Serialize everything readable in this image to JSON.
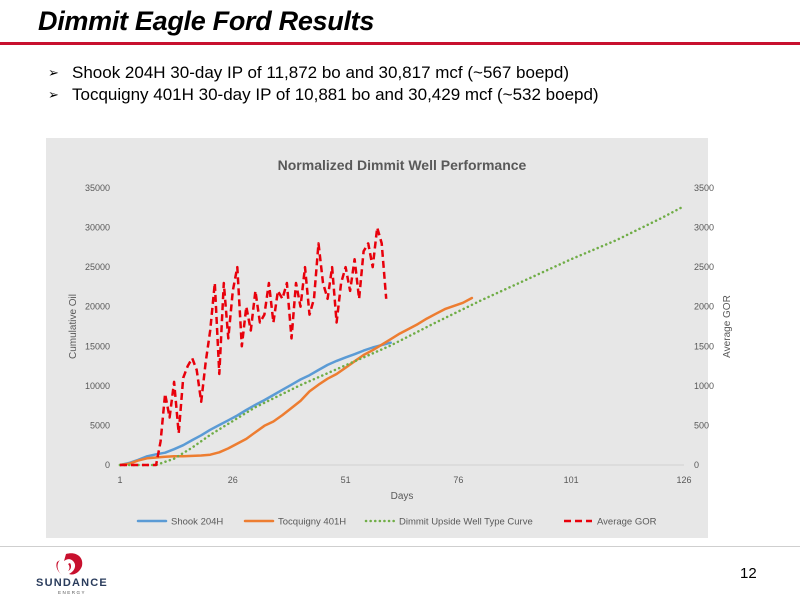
{
  "slide": {
    "title": "Dimmit Eagle Ford Results",
    "bullets": [
      "Shook 204H 30-day IP of 11,872 bo and 30,817 mcf (~567 boepd)",
      "Tocquigny 401H 30-day IP of 10,881 bo and 30,429 mcf (~532 boepd)"
    ],
    "page_number": "12",
    "logo": {
      "text": "SUNDANCE",
      "subtext": "ENERGY"
    }
  },
  "colors": {
    "title_rule": "#c8102e",
    "shook": "#5b9bd5",
    "tocquigny": "#ed7d31",
    "type_curve": "#70ad47",
    "gor": "#e8000b",
    "chart_background": "#e7e7e7"
  },
  "chart_data": {
    "type": "line",
    "title": "Normalized Dimmit Well Performance",
    "xlabel": "Days",
    "ylabel": "Cumulative Oil",
    "y2label": "Average GOR",
    "xlim": [
      1,
      126
    ],
    "ylim": [
      0,
      35000
    ],
    "y2lim": [
      0,
      3500
    ],
    "x_ticks": [
      "1",
      "26",
      "51",
      "76",
      "101",
      "126"
    ],
    "y_ticks": [
      "0",
      "5000",
      "10000",
      "15000",
      "20000",
      "25000",
      "30000",
      "35000"
    ],
    "y2_ticks": [
      "0",
      "500",
      "1000",
      "1500",
      "2000",
      "2500",
      "3000",
      "3500"
    ],
    "grid": false,
    "legend": "bottom",
    "series": [
      {
        "name": "Shook 204H",
        "axis": "left",
        "style": "solid",
        "x": [
          1,
          3,
          5,
          7,
          9,
          11,
          13,
          15,
          17,
          19,
          21,
          23,
          25,
          27,
          29,
          31,
          33,
          35,
          37,
          39,
          41,
          43,
          45,
          47,
          49,
          51,
          53,
          55,
          57,
          59,
          61
        ],
        "y": [
          0,
          250,
          650,
          1100,
          1350,
          1550,
          2000,
          2500,
          3150,
          3750,
          4450,
          5050,
          5650,
          6250,
          6950,
          7600,
          8200,
          8850,
          9500,
          10150,
          10800,
          11350,
          12000,
          12650,
          13150,
          13600,
          14000,
          14450,
          14850,
          15150,
          15450
        ]
      },
      {
        "name": "Tocquigny 401H",
        "axis": "left",
        "style": "solid",
        "x": [
          1,
          3,
          5,
          7,
          9,
          11,
          13,
          15,
          17,
          19,
          21,
          23,
          25,
          27,
          29,
          31,
          33,
          35,
          37,
          39,
          41,
          43,
          45,
          47,
          49,
          51,
          53,
          55,
          57,
          59,
          61,
          63,
          65,
          67,
          69,
          71,
          73,
          75,
          77,
          79
        ],
        "y": [
          0,
          150,
          550,
          850,
          950,
          1050,
          1100,
          1100,
          1150,
          1200,
          1300,
          1600,
          2100,
          2700,
          3300,
          4150,
          4950,
          5500,
          6300,
          7200,
          8100,
          9300,
          10150,
          10900,
          11500,
          12300,
          13100,
          13900,
          14500,
          15200,
          15900,
          16600,
          17200,
          17800,
          18500,
          19100,
          19700,
          20100,
          20500,
          21100
        ]
      },
      {
        "name": "Dimmit Upside Well Type Curve",
        "axis": "left",
        "style": "dotted",
        "x": [
          1,
          5,
          9,
          13,
          17,
          21,
          31,
          41,
          51,
          61,
          71,
          81,
          91,
          101,
          111,
          121,
          126
        ],
        "y": [
          0,
          0,
          0,
          800,
          2200,
          3800,
          7300,
          10100,
          12600,
          15100,
          18000,
          20800,
          23400,
          26000,
          28400,
          31200,
          32700
        ]
      },
      {
        "name": "Average GOR",
        "axis": "right",
        "style": "dashed",
        "x": [
          1,
          6,
          9,
          10,
          11,
          12,
          13,
          14,
          15,
          16,
          17,
          18,
          19,
          20,
          21,
          22,
          23,
          24,
          25,
          26,
          27,
          28,
          29,
          30,
          31,
          32,
          33,
          34,
          35,
          36,
          37,
          38,
          39,
          40,
          41,
          42,
          43,
          44,
          45,
          46,
          47,
          48,
          49,
          50,
          51,
          52,
          53,
          54,
          55,
          56,
          57,
          58,
          59,
          60
        ],
        "y": [
          0,
          0,
          0,
          300,
          900,
          600,
          1050,
          400,
          1100,
          1250,
          1350,
          1200,
          800,
          1300,
          1700,
          2300,
          1150,
          2300,
          1600,
          2200,
          2500,
          1500,
          2000,
          1700,
          2200,
          1800,
          1900,
          2300,
          1800,
          2200,
          2100,
          2300,
          1600,
          2300,
          2000,
          2500,
          1900,
          2100,
          2800,
          2300,
          2100,
          2500,
          1800,
          2300,
          2500,
          2200,
          2600,
          2100,
          2700,
          2800,
          2500,
          3000,
          2800,
          2100
        ]
      }
    ]
  }
}
